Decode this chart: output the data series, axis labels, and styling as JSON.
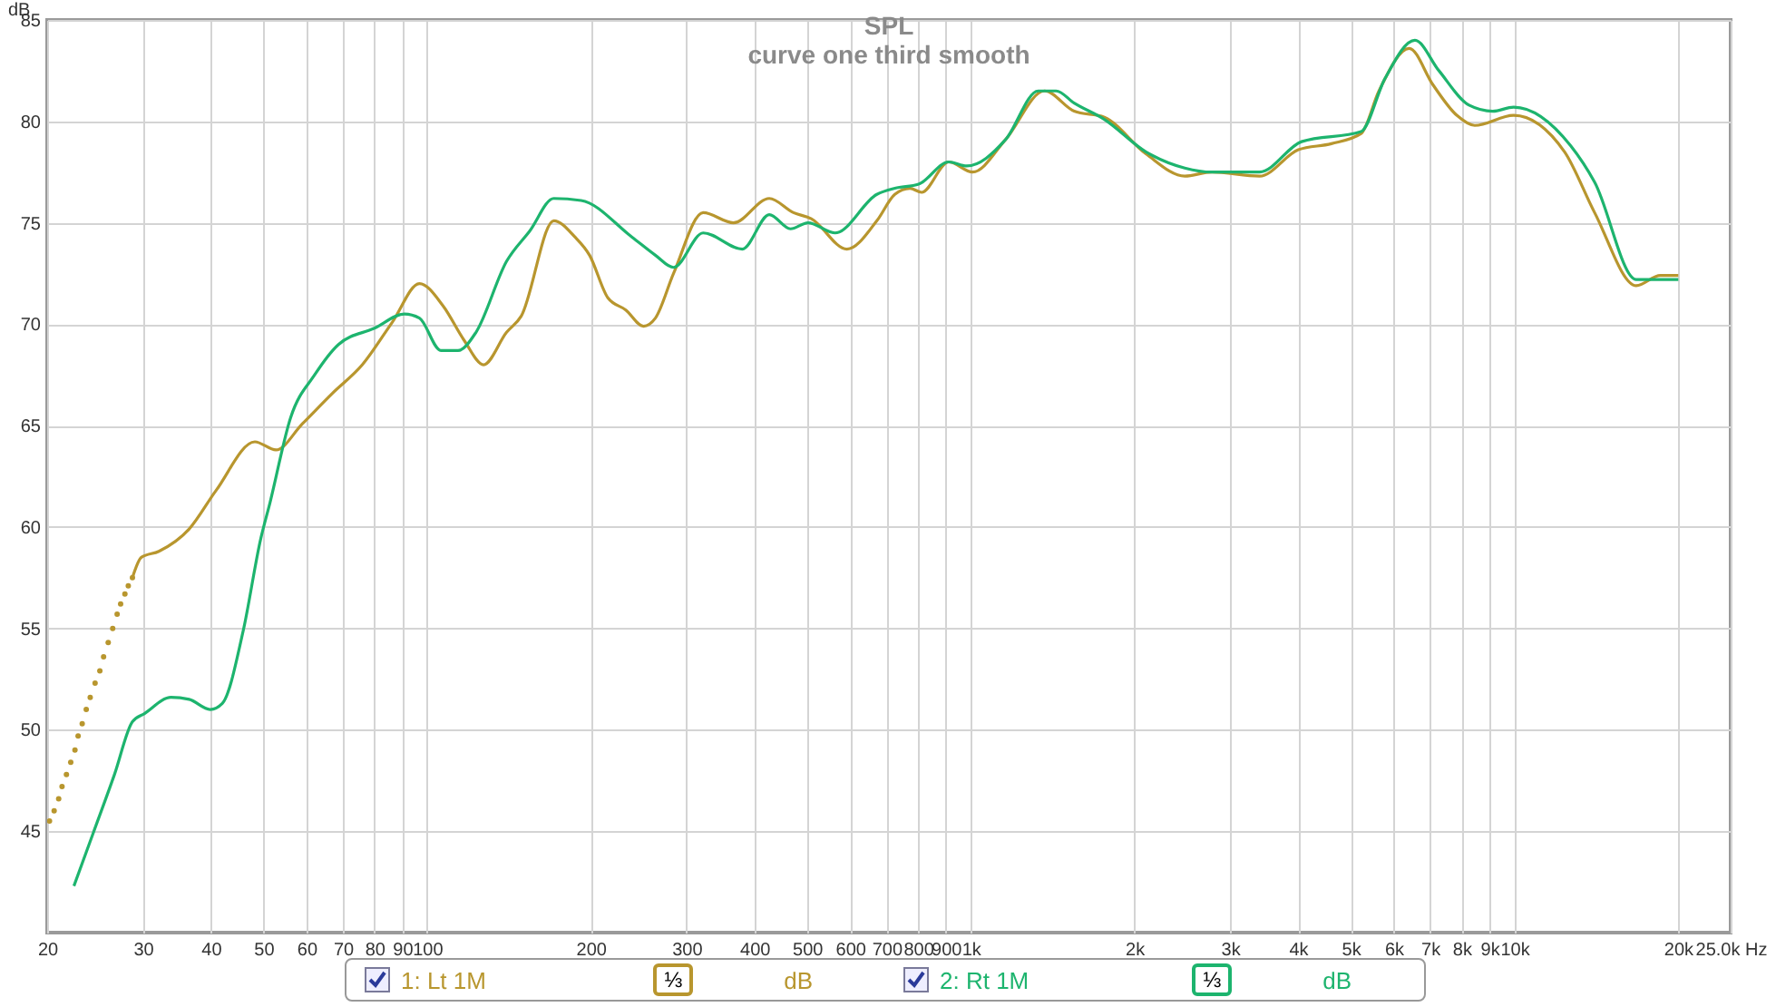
{
  "chart_data": {
    "type": "line",
    "title": "SPL",
    "subtitle": "curve one third smooth",
    "ylabel": "dB",
    "xlim": [
      20,
      25000
    ],
    "ylim": [
      40,
      85
    ],
    "xticks": [
      20,
      30,
      40,
      50,
      60,
      70,
      80,
      90,
      100,
      200,
      300,
      400,
      500,
      600,
      700,
      800,
      900,
      {
        "value": 1000,
        "label": "1k"
      },
      {
        "value": 2000,
        "label": "2k"
      },
      {
        "value": 3000,
        "label": "3k"
      },
      {
        "value": 4000,
        "label": "4k"
      },
      {
        "value": 5000,
        "label": "5k"
      },
      {
        "value": 6000,
        "label": "6k"
      },
      {
        "value": 7000,
        "label": "7k"
      },
      {
        "value": 8000,
        "label": "8k"
      },
      {
        "value": 9000,
        "label": "9k"
      },
      {
        "value": 10000,
        "label": "10k"
      },
      {
        "value": 20000,
        "label": "20k"
      },
      {
        "value": 25000,
        "label": "25.0k Hz"
      }
    ],
    "yticks": [
      45,
      50,
      55,
      60,
      65,
      70,
      75,
      80,
      85
    ],
    "grid": true,
    "legend": "bottom",
    "log": "x",
    "annotations": [
      "⅓",
      "dB",
      "⅓",
      "dB"
    ],
    "series": [
      {
        "type": "scatter",
        "color": "#b8962e",
        "x": [
          20.2,
          20.6,
          21,
          21.3,
          21.7,
          22.1,
          22.5,
          22.8,
          23.2,
          23.6,
          24,
          24.5,
          25,
          25.4,
          25.9,
          26.4,
          26.9,
          27.3,
          27.8,
          28.2,
          28.7
        ],
        "values": [
          45.5,
          46,
          46.6,
          47.2,
          47.8,
          48.4,
          49,
          49.7,
          50.3,
          51,
          51.6,
          52.3,
          52.9,
          53.6,
          54.3,
          55,
          55.7,
          56.2,
          56.7,
          57.1,
          57.5
        ]
      },
      {
        "name": "1: Lt 1M",
        "color": "#b8962e",
        "x": [
          28.7,
          29.8,
          32.1,
          36.5,
          40.9,
          48.2,
          52.7,
          59,
          67,
          76,
          86.3,
          96.8,
          107,
          117,
          127,
          140,
          149,
          171,
          187,
          199,
          215,
          232,
          250,
          263,
          284,
          322,
          366,
          426,
          472,
          509,
          592,
          672,
          725,
          773,
          812,
          911,
          1008,
          1159,
          1366,
          1550,
          1761,
          2100,
          2476,
          2778,
          3399,
          4006,
          4607,
          5227,
          5636,
          6407,
          7085,
          7836,
          8457,
          9970,
          12370,
          14050,
          16760,
          18560,
          20030
        ],
        "values": [
          57.5,
          58.5,
          58.8,
          59.9,
          61.8,
          64.2,
          63.8,
          65.1,
          66.6,
          68,
          70.1,
          72,
          70.9,
          69.2,
          68,
          69.6,
          70.4,
          75.1,
          74.3,
          73.4,
          71.3,
          70.7,
          69.9,
          70.3,
          72.5,
          75.5,
          75,
          76.2,
          75.5,
          75.2,
          73.7,
          75.1,
          76.4,
          76.7,
          76.5,
          78,
          77.5,
          79.1,
          81.5,
          80.5,
          80.2,
          78.4,
          77.3,
          77.5,
          77.3,
          78.6,
          78.9,
          79.4,
          81.5,
          83.6,
          81.8,
          80.3,
          79.8,
          80.3,
          78.5,
          75.5,
          71.9,
          72.4,
          72.4
        ]
      },
      {
        "name": "2: Rt 1M",
        "color": "#1db46e",
        "x": [
          22.4,
          24.3,
          26.6,
          28.7,
          30.2,
          33.8,
          36.5,
          39.9,
          42,
          45.9,
          49.4,
          51.4,
          56.1,
          62.1,
          68.7,
          80,
          90.8,
          96.8,
          106,
          114,
          123,
          140,
          154.5,
          171,
          192,
          238,
          263,
          284,
          322,
          380,
          426,
          466,
          502,
          563,
          672,
          725,
          802,
          911,
          983,
          1159,
          1331,
          1436,
          1550,
          1761,
          2100,
          2476,
          2778,
          3399,
          4060,
          5227,
          5779,
          6563,
          7265,
          8254,
          9127,
          9970,
          12690,
          14050,
          16760,
          18070,
          20030
        ],
        "values": [
          42.3,
          44.9,
          47.8,
          50.4,
          50.8,
          51.6,
          51.5,
          51,
          51.3,
          54.9,
          59.4,
          61.2,
          65.4,
          67.5,
          69,
          69.8,
          70.5,
          70.3,
          68.7,
          68.7,
          69.6,
          73.1,
          74.6,
          76.2,
          76.1,
          74.3,
          73.4,
          72.8,
          74.5,
          73.7,
          75.4,
          74.7,
          75,
          74.5,
          76.4,
          76.7,
          76.9,
          78,
          77.8,
          79.1,
          81.5,
          81.5,
          80.9,
          80.1,
          78.5,
          77.7,
          77.5,
          77.5,
          79,
          79.5,
          82.1,
          84,
          82.5,
          80.8,
          80.5,
          80.7,
          78.8,
          77,
          72.2,
          72.2,
          72.2
        ]
      }
    ]
  }
}
